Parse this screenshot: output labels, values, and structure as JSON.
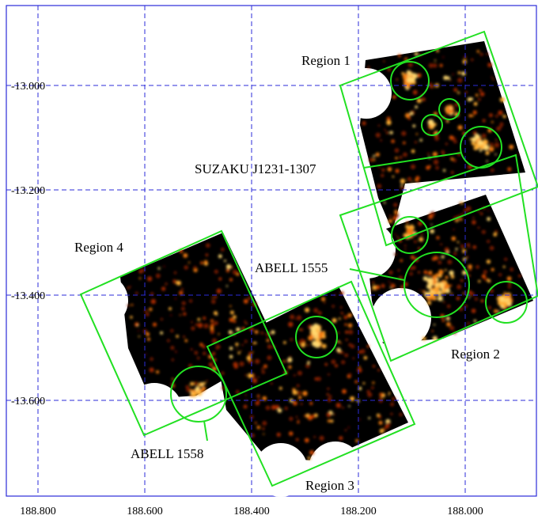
{
  "map": {
    "ra_ticks": [
      "188.800",
      "188.600",
      "188.400",
      "188.200",
      "188.000"
    ],
    "dec_ticks": [
      "-13.000",
      "-13.200",
      "-13.400",
      "-13.600"
    ],
    "labels": {
      "region1": "Region 1",
      "region2": "Region 2",
      "region3": "Region 3",
      "region4": "Region 4",
      "suzaku": "SUZAKU J1231-1307",
      "abell1555": "ABELL 1555",
      "abell1558": "ABELL 1558"
    },
    "colors": {
      "grid": "#2b2bd9",
      "region_outline": "#22e022",
      "background": "#000000",
      "emission": "#ff9a1a"
    }
  }
}
